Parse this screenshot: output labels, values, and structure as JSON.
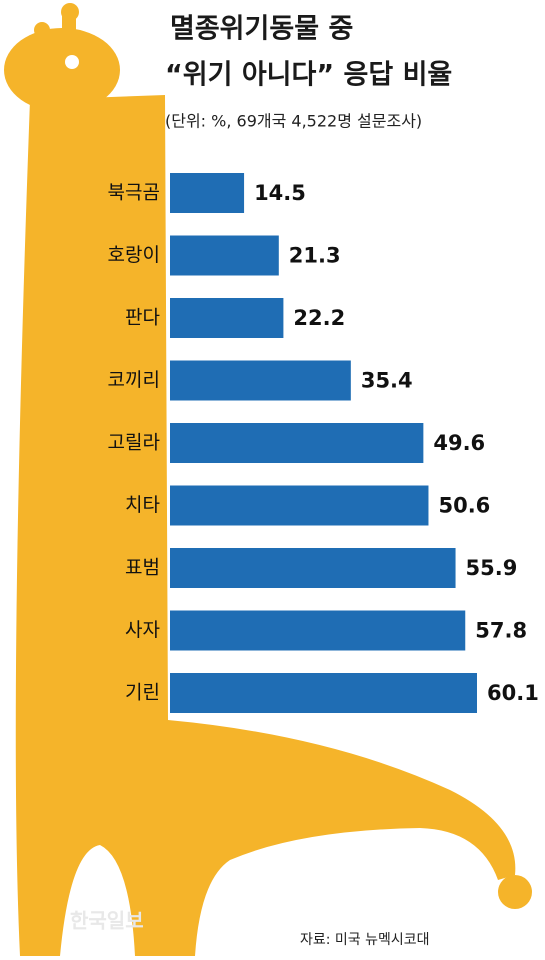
{
  "chart_data": {
    "type": "bar",
    "orientation": "horizontal",
    "title_lines": [
      "멸종위기동물 중",
      "“위기 아니다” 응답 비율"
    ],
    "subtitle": "(단위: %, 69개국 4,522명 설문조사)",
    "categories": [
      "북극곰",
      "호랑이",
      "판다",
      "코끼리",
      "고릴라",
      "치타",
      "표범",
      "사자",
      "기린"
    ],
    "values": [
      14.5,
      21.3,
      22.2,
      35.4,
      49.6,
      50.6,
      55.9,
      57.8,
      60.1
    ],
    "color": "#1f6db4",
    "source": "자료: 미국 뉴멕시코대",
    "watermark": "한국일보"
  }
}
